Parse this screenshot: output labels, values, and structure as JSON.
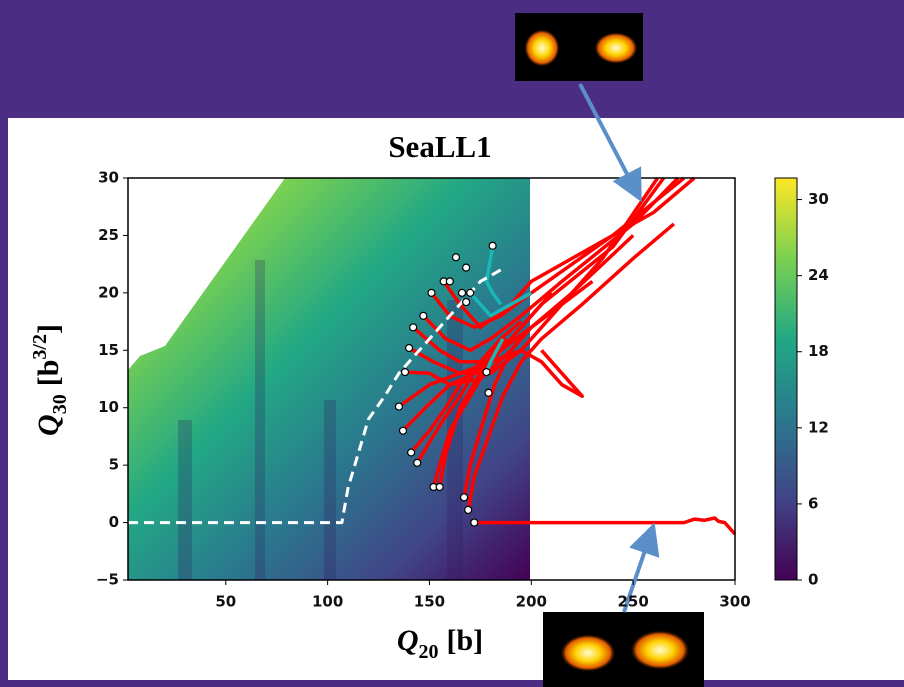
{
  "chart_data": {
    "type": "line",
    "title": "SeaLL1",
    "xlabel": {
      "symbol": "Q",
      "subscript": "20",
      "unit": "[b]"
    },
    "ylabel": {
      "symbol": "Q",
      "subscript": "30",
      "unit": "[b",
      "superscript": "3/2",
      "close": "]"
    },
    "xlim": [
      2,
      300
    ],
    "xticks": [
      50,
      100,
      150,
      200,
      250,
      300
    ],
    "ylim": [
      -5,
      30
    ],
    "yticks": [
      {
        "value": -5,
        "label": "−5"
      },
      0,
      5,
      10,
      15,
      20,
      25,
      30
    ],
    "colorbar": {
      "lim": [
        0,
        31.7
      ],
      "ticks": [
        0,
        6,
        12,
        18,
        24,
        30
      ]
    },
    "series": [
      {
        "color": "#ff0000",
        "x": [
          157,
          165,
          175,
          190,
          200,
          230,
          260,
          280
        ],
        "values": [
          21,
          19,
          17,
          19,
          21,
          24,
          27,
          30
        ]
      },
      {
        "color": "#ff0000",
        "x": [
          151,
          160,
          172,
          185,
          200,
          240,
          275
        ],
        "values": [
          20,
          18,
          17,
          18,
          20,
          25,
          30
        ]
      },
      {
        "color": "#ff0000",
        "x": [
          147,
          158,
          170,
          180,
          195,
          215,
          250,
          272
        ],
        "values": [
          18,
          16,
          15,
          16,
          18,
          21,
          26,
          30
        ]
      },
      {
        "color": "#ff0000",
        "x": [
          142,
          155,
          165,
          178,
          190,
          205,
          240,
          265
        ],
        "values": [
          17,
          15,
          14,
          14,
          16,
          19,
          24,
          30
        ]
      },
      {
        "color": "#ff0000",
        "x": [
          140,
          152,
          165,
          180,
          195,
          210,
          235,
          262
        ],
        "values": [
          15.2,
          14,
          13,
          13,
          15,
          18,
          23,
          30
        ]
      },
      {
        "color": "#ff0000",
        "x": [
          138,
          150,
          160,
          175,
          190,
          200,
          220,
          250
        ],
        "values": [
          13.1,
          13,
          12,
          12.5,
          15,
          17,
          20,
          25
        ]
      },
      {
        "color": "#ff0000",
        "x": [
          135,
          150,
          165,
          180,
          195,
          205,
          215,
          225,
          220,
          205
        ],
        "values": [
          10.1,
          12,
          13,
          14,
          15,
          14,
          12,
          11,
          12,
          15
        ]
      },
      {
        "color": "#ff0000",
        "x": [
          137,
          148,
          160,
          172,
          185,
          200,
          215
        ],
        "values": [
          8,
          10,
          12,
          13,
          15,
          17,
          19
        ]
      },
      {
        "color": "#ff0000",
        "x": [
          141,
          150,
          158,
          165,
          175,
          185,
          195
        ],
        "values": [
          6.1,
          8,
          10,
          12,
          14,
          16,
          17.5
        ]
      },
      {
        "color": "#ff0000",
        "x": [
          144,
          150,
          157,
          165,
          175,
          188
        ],
        "values": [
          5.2,
          7,
          9,
          11,
          14,
          16
        ]
      },
      {
        "color": "#ff0000",
        "x": [
          152,
          155,
          160,
          170,
          180,
          190,
          200,
          210
        ],
        "values": [
          3.1,
          5,
          8,
          11,
          14,
          16,
          18,
          20
        ]
      },
      {
        "color": "#ff0000",
        "x": [
          155,
          158,
          165,
          175,
          185,
          195
        ],
        "values": [
          3.1,
          6,
          10,
          13,
          15,
          17
        ]
      },
      {
        "color": "#ff0000",
        "x": [
          167,
          170,
          175,
          182,
          190,
          200,
          215,
          230
        ],
        "values": [
          2.2,
          5,
          8,
          12,
          15,
          17,
          19,
          21
        ]
      },
      {
        "color": "#ff0000",
        "x": [
          169,
          172,
          178,
          186,
          195,
          205,
          225,
          250,
          270
        ],
        "values": [
          1.1,
          4,
          7,
          11,
          14,
          16,
          19,
          23,
          26
        ]
      },
      {
        "color": "#ff0000",
        "x": [
          172,
          200,
          250,
          275,
          280,
          285,
          290,
          292,
          295,
          300
        ],
        "values": [
          0,
          0,
          0,
          0,
          0.3,
          0.2,
          0.4,
          0.1,
          0,
          -1
        ]
      },
      {
        "color": "#18b8b8",
        "x": [
          181,
          178,
          181,
          185
        ],
        "values": [
          24,
          21,
          20,
          19
        ]
      },
      {
        "color": "#18b8b8",
        "x": [
          170,
          175,
          180,
          190,
          200
        ],
        "values": [
          20,
          19,
          18,
          19,
          20
        ]
      },
      {
        "color": "#18b8b8",
        "x": [
          178,
          180,
          183,
          186
        ],
        "values": [
          13.1,
          14,
          15,
          16
        ]
      },
      {
        "color": "#ffffff",
        "dashed": true,
        "x": [
          2,
          107,
          110,
          115,
          120,
          128,
          135,
          150,
          165,
          175,
          185
        ],
        "values": [
          0,
          0,
          3,
          6,
          9,
          11,
          13,
          16,
          19,
          21,
          22
        ]
      }
    ],
    "start_points": {
      "x": [
        181,
        163,
        168,
        157,
        160,
        151,
        166,
        170,
        168,
        147,
        142,
        140,
        138,
        135,
        137,
        141,
        144,
        152,
        155,
        167,
        169,
        172,
        178,
        179
      ],
      "values": [
        24.1,
        23.1,
        22.2,
        21,
        21,
        20,
        20,
        20,
        19.2,
        18,
        17,
        15.2,
        13.1,
        10.1,
        8,
        6.1,
        5.2,
        3.1,
        3.1,
        2.2,
        1.1,
        0,
        13.1,
        11.3
      ]
    }
  }
}
